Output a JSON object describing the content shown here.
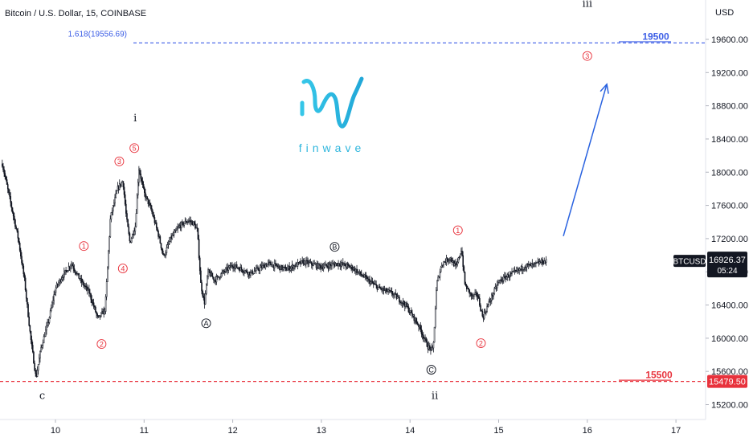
{
  "chart_data": {
    "type": "candlestick",
    "title": "Bitcoin / U.S. Dollar, 15, COINBASE",
    "y_unit": "USD",
    "ylim": [
      15050,
      20300
    ],
    "xlim": [
      9.4,
      17.3
    ],
    "y_ticks": [
      15200,
      15600,
      16000,
      16400,
      16800,
      17200,
      17600,
      18000,
      18400,
      18800,
      19200,
      19600
    ],
    "y_tick_labels": [
      "15200.00",
      "15600.00",
      "16000.00",
      "16400.00",
      "16800.00",
      "17200.00",
      "17600.00",
      "18000.00",
      "18400.00",
      "18800.00",
      "19200.00",
      "19600.00"
    ],
    "x_ticks": [
      10,
      11,
      12,
      13,
      14,
      15,
      16,
      17
    ],
    "x_tick_labels": [
      "10",
      "11",
      "12",
      "13",
      "14",
      "15",
      "16",
      "17"
    ],
    "price_path": [
      [
        9.4,
        18100
      ],
      [
        9.5,
        17600
      ],
      [
        9.58,
        17200
      ],
      [
        9.65,
        16700
      ],
      [
        9.72,
        16000
      ],
      [
        9.78,
        15520
      ],
      [
        9.84,
        15900
      ],
      [
        9.92,
        16200
      ],
      [
        10.0,
        16600
      ],
      [
        10.08,
        16750
      ],
      [
        10.18,
        16900
      ],
      [
        10.28,
        16700
      ],
      [
        10.38,
        16550
      ],
      [
        10.48,
        16230
      ],
      [
        10.56,
        16350
      ],
      [
        10.62,
        17450
      ],
      [
        10.7,
        17800
      ],
      [
        10.76,
        17900
      ],
      [
        10.8,
        17450
      ],
      [
        10.84,
        17150
      ],
      [
        10.9,
        17350
      ],
      [
        10.94,
        18050
      ],
      [
        11.0,
        17750
      ],
      [
        11.08,
        17550
      ],
      [
        11.16,
        17250
      ],
      [
        11.22,
        16980
      ],
      [
        11.3,
        17200
      ],
      [
        11.4,
        17350
      ],
      [
        11.5,
        17420
      ],
      [
        11.56,
        17380
      ],
      [
        11.6,
        17300
      ],
      [
        11.64,
        16650
      ],
      [
        11.68,
        16420
      ],
      [
        11.72,
        16800
      ],
      [
        11.8,
        16700
      ],
      [
        11.9,
        16800
      ],
      [
        12.0,
        16880
      ],
      [
        12.2,
        16780
      ],
      [
        12.4,
        16900
      ],
      [
        12.6,
        16830
      ],
      [
        12.8,
        16920
      ],
      [
        13.0,
        16860
      ],
      [
        13.2,
        16900
      ],
      [
        13.35,
        16850
      ],
      [
        13.5,
        16720
      ],
      [
        13.65,
        16600
      ],
      [
        13.8,
        16540
      ],
      [
        13.95,
        16400
      ],
      [
        14.1,
        16150
      ],
      [
        14.2,
        15900
      ],
      [
        14.26,
        15850
      ],
      [
        14.3,
        16650
      ],
      [
        14.36,
        16900
      ],
      [
        14.45,
        16970
      ],
      [
        14.52,
        16850
      ],
      [
        14.58,
        17080
      ],
      [
        14.62,
        16640
      ],
      [
        14.7,
        16500
      ],
      [
        14.76,
        16530
      ],
      [
        14.82,
        16250
      ],
      [
        14.9,
        16450
      ],
      [
        15.0,
        16680
      ],
      [
        15.1,
        16750
      ],
      [
        15.2,
        16800
      ],
      [
        15.3,
        16870
      ],
      [
        15.4,
        16880
      ],
      [
        15.48,
        16920
      ],
      [
        15.54,
        16926
      ]
    ],
    "levels": [
      {
        "price": 19556.69,
        "color": "#3c5ee6",
        "label": "1.618(19556.69)",
        "target": "19500",
        "style": "dashed"
      },
      {
        "price": 15479.5,
        "color": "#e8323c",
        "target": "15500",
        "style": "dashed"
      }
    ],
    "price_badges": [
      {
        "symbol": "BTCUSD",
        "price": "16926.37",
        "countdown": "05:24",
        "y": 16926.37
      },
      {
        "price": "15479.50",
        "y": 15479.5,
        "color": "#e8323c"
      }
    ],
    "projection_arrow": {
      "from": [
        15.73,
        17230
      ],
      "to": [
        16.22,
        19060
      ],
      "color": "#2962e0"
    },
    "wave_labels": [
      {
        "text": "c",
        "x": 9.85,
        "y": 15305,
        "kind": "roman"
      },
      {
        "text": "i",
        "x": 10.9,
        "y": 18650,
        "kind": "roman"
      },
      {
        "text": "ii",
        "x": 14.28,
        "y": 15305,
        "kind": "roman"
      },
      {
        "text": "iii",
        "x": 16.0,
        "y": 20030,
        "kind": "roman"
      },
      {
        "text": "1",
        "x": 10.32,
        "y": 17110,
        "kind": "red"
      },
      {
        "text": "2",
        "x": 10.52,
        "y": 15930,
        "kind": "red"
      },
      {
        "text": "3",
        "x": 10.72,
        "y": 18130,
        "kind": "red"
      },
      {
        "text": "4",
        "x": 10.76,
        "y": 16840,
        "kind": "red"
      },
      {
        "text": "5",
        "x": 10.89,
        "y": 18290,
        "kind": "red"
      },
      {
        "text": "1",
        "x": 14.54,
        "y": 17300,
        "kind": "red"
      },
      {
        "text": "2",
        "x": 14.8,
        "y": 15940,
        "kind": "red"
      },
      {
        "text": "3",
        "x": 16.0,
        "y": 19400,
        "kind": "red"
      },
      {
        "text": "A",
        "x": 11.7,
        "y": 16180,
        "kind": "black"
      },
      {
        "text": "B",
        "x": 13.15,
        "y": 17100,
        "kind": "black"
      },
      {
        "text": "C",
        "x": 14.24,
        "y": 15620,
        "kind": "black"
      }
    ],
    "logo_text": "finwave",
    "grid": false
  }
}
